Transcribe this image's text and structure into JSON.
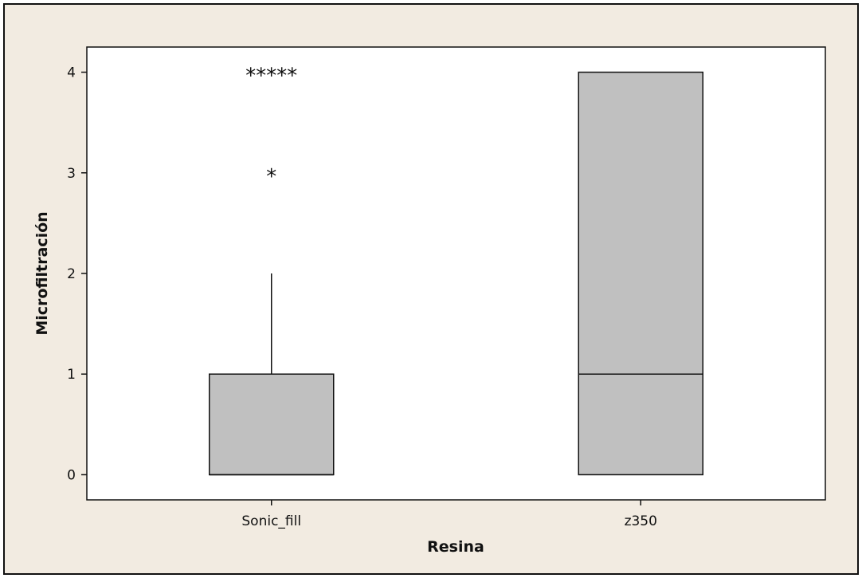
{
  "chart_data": {
    "type": "boxplot",
    "title": "",
    "xlabel": "Resina",
    "ylabel": "Microfiltración",
    "ylim": [
      -0.25,
      4.25
    ],
    "yticks": [
      0,
      1,
      2,
      3,
      4
    ],
    "ytick_labels": [
      "0",
      "1",
      "2",
      "3",
      "4"
    ],
    "categories": [
      "Sonic_fill",
      "z350"
    ],
    "grid": false,
    "legend": "none",
    "colors": {
      "background": "#f2ebe1",
      "plot": "#ffffff",
      "box": "#c0c0c0",
      "stroke": "#111111"
    },
    "boxes": [
      {
        "category": "Sonic_fill",
        "q1": 0,
        "median": 0,
        "q3": 1,
        "whisker_low": 0,
        "whisker_high": 2,
        "outliers": [
          3,
          4,
          4,
          4,
          4,
          4
        ]
      },
      {
        "category": "z350",
        "q1": 0,
        "median": 1,
        "q3": 4,
        "whisker_low": 0,
        "whisker_high": 4,
        "outliers": []
      }
    ]
  }
}
